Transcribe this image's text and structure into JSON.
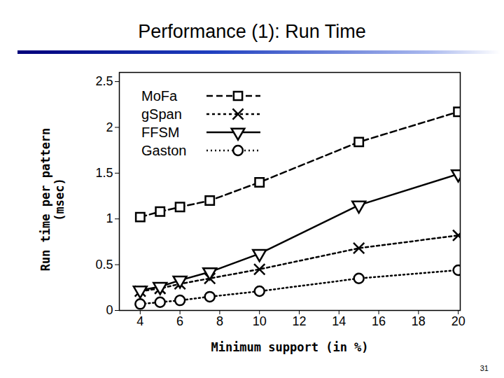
{
  "chart_data": {
    "type": "line",
    "title": "Performance (1): Run Time",
    "page_number": "31",
    "x_label": "Minimum support (in %)",
    "y_label": "Run time per pattern (msec)",
    "x": [
      4,
      5,
      6,
      7.5,
      10,
      15,
      20
    ],
    "xlim": [
      2.95,
      20.1
    ],
    "xticks": [
      4,
      6,
      8,
      10,
      12,
      14,
      16,
      18,
      20
    ],
    "ylim": [
      0,
      2.6
    ],
    "yticks": [
      0,
      0.5,
      1,
      1.5,
      2,
      2.5
    ],
    "grid": false,
    "legend": "top-left",
    "series": [
      {
        "name": "MoFa",
        "color": "#000000",
        "marker": "square",
        "line_style": "dashed",
        "values": [
          1.02,
          1.08,
          1.13,
          1.2,
          1.4,
          1.84,
          2.17
        ]
      },
      {
        "name": "gSpan",
        "color": "#000000",
        "marker": "times",
        "line_style": "short-dashed",
        "values": [
          0.21,
          0.24,
          0.29,
          0.35,
          0.45,
          0.68,
          0.82
        ]
      },
      {
        "name": "FFSM",
        "color": "#000000",
        "marker": "triangle-down",
        "line_style": "solid",
        "values": [
          0.22,
          0.26,
          0.33,
          0.42,
          0.62,
          1.15,
          1.49
        ]
      },
      {
        "name": "Gaston",
        "color": "#000000",
        "marker": "circle",
        "line_style": "dotted",
        "values": [
          0.07,
          0.09,
          0.11,
          0.15,
          0.21,
          0.35,
          0.44
        ]
      }
    ]
  }
}
